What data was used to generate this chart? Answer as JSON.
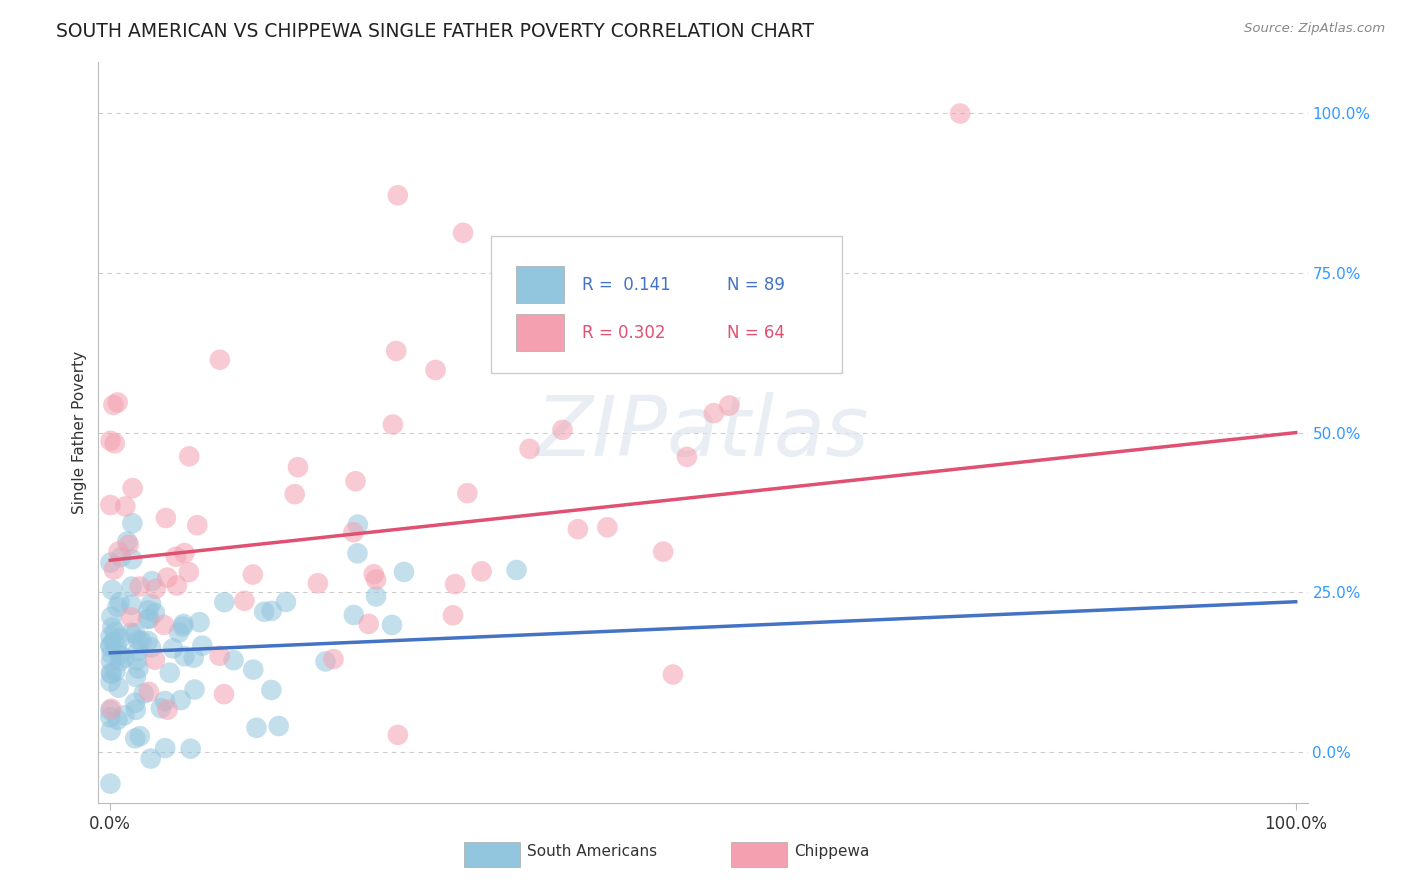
{
  "title": "SOUTH AMERICAN VS CHIPPEWA SINGLE FATHER POVERTY CORRELATION CHART",
  "source": "Source: ZipAtlas.com",
  "ylabel": "Single Father Poverty",
  "legend_label1": "South Americans",
  "legend_label2": "Chippewa",
  "R1": 0.141,
  "N1": 89,
  "R2": 0.302,
  "N2": 64,
  "blue_color": "#92c5de",
  "pink_color": "#f4a0b0",
  "blue_line_color": "#4472c4",
  "pink_line_color": "#e05070",
  "ytick_color": "#3399ff",
  "grid_color": "#cccccc",
  "sa_line_intercept": 0.155,
  "sa_line_slope": 0.08,
  "ch_line_intercept": 0.3,
  "ch_line_slope": 0.2,
  "ylim_min": -0.08,
  "ylim_max": 1.08,
  "xlim_min": -0.01,
  "xlim_max": 1.01,
  "yticks": [
    0.0,
    0.25,
    0.5,
    0.75,
    1.0
  ],
  "ytick_labels": [
    "0.0%",
    "25.0%",
    "50.0%",
    "75.0%",
    "100.0%"
  ]
}
